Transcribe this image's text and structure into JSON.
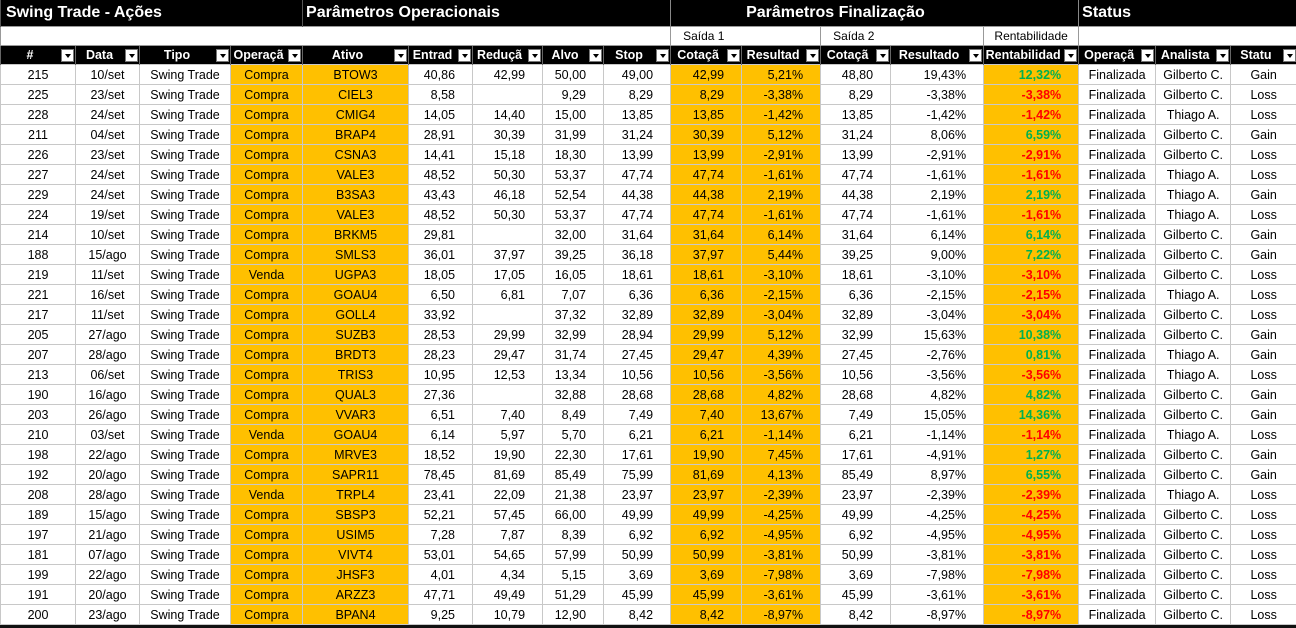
{
  "header": {
    "title": "Swing Trade - Ações",
    "groups": [
      "Parâmetros Operacionais",
      "Parâmetros Finalização",
      "Status"
    ],
    "subgroups": [
      "Saída 1",
      "Saída 2",
      "Rentabilidade"
    ]
  },
  "table": {
    "columns": [
      "#",
      "Data",
      "Tipo",
      "Operaçã",
      "Ativo",
      "Entrad",
      "Reduçã",
      "Alvo",
      "Stop",
      "Cotaçã",
      "Resultad",
      "Cotaçã",
      "Resultado",
      "Rentabilidad",
      "Operaçã",
      "Analista",
      "Statu"
    ],
    "rows": [
      [
        "215",
        "10/set",
        "Swing Trade",
        "Compra",
        "BTOW3",
        "40,86",
        "42,99",
        "50,00",
        "49,00",
        "42,99",
        "5,21%",
        "48,80",
        "19,43%",
        "12,32%",
        "Finalizada",
        "Gilberto C.",
        "Gain"
      ],
      [
        "225",
        "23/set",
        "Swing Trade",
        "Compra",
        "CIEL3",
        "8,58",
        null,
        "9,29",
        "8,29",
        "8,29",
        "-3,38%",
        "8,29",
        "-3,38%",
        "-3,38%",
        "Finalizada",
        "Gilberto C.",
        "Loss"
      ],
      [
        "228",
        "24/set",
        "Swing Trade",
        "Compra",
        "CMIG4",
        "14,05",
        "14,40",
        "15,00",
        "13,85",
        "13,85",
        "-1,42%",
        "13,85",
        "-1,42%",
        "-1,42%",
        "Finalizada",
        "Thiago A.",
        "Loss"
      ],
      [
        "211",
        "04/set",
        "Swing Trade",
        "Compra",
        "BRAP4",
        "28,91",
        "30,39",
        "31,99",
        "31,24",
        "30,39",
        "5,12%",
        "31,24",
        "8,06%",
        "6,59%",
        "Finalizada",
        "Gilberto C.",
        "Gain"
      ],
      [
        "226",
        "23/set",
        "Swing Trade",
        "Compra",
        "CSNA3",
        "14,41",
        "15,18",
        "18,30",
        "13,99",
        "13,99",
        "-2,91%",
        "13,99",
        "-2,91%",
        "-2,91%",
        "Finalizada",
        "Gilberto C.",
        "Loss"
      ],
      [
        "227",
        "24/set",
        "Swing Trade",
        "Compra",
        "VALE3",
        "48,52",
        "50,30",
        "53,37",
        "47,74",
        "47,74",
        "-1,61%",
        "47,74",
        "-1,61%",
        "-1,61%",
        "Finalizada",
        "Thiago A.",
        "Loss"
      ],
      [
        "229",
        "24/set",
        "Swing Trade",
        "Compra",
        "B3SA3",
        "43,43",
        "46,18",
        "52,54",
        "44,38",
        "44,38",
        "2,19%",
        "44,38",
        "2,19%",
        "2,19%",
        "Finalizada",
        "Thiago A.",
        "Gain"
      ],
      [
        "224",
        "19/set",
        "Swing Trade",
        "Compra",
        "VALE3",
        "48,52",
        "50,30",
        "53,37",
        "47,74",
        "47,74",
        "-1,61%",
        "47,74",
        "-1,61%",
        "-1,61%",
        "Finalizada",
        "Thiago A.",
        "Loss"
      ],
      [
        "214",
        "10/set",
        "Swing Trade",
        "Compra",
        "BRKM5",
        "29,81",
        null,
        "32,00",
        "31,64",
        "31,64",
        "6,14%",
        "31,64",
        "6,14%",
        "6,14%",
        "Finalizada",
        "Gilberto C.",
        "Gain"
      ],
      [
        "188",
        "15/ago",
        "Swing Trade",
        "Compra",
        "SMLS3",
        "36,01",
        "37,97",
        "39,25",
        "36,18",
        "37,97",
        "5,44%",
        "39,25",
        "9,00%",
        "7,22%",
        "Finalizada",
        "Gilberto C.",
        "Gain"
      ],
      [
        "219",
        "11/set",
        "Swing Trade",
        "Venda",
        "UGPA3",
        "18,05",
        "17,05",
        "16,05",
        "18,61",
        "18,61",
        "-3,10%",
        "18,61",
        "-3,10%",
        "-3,10%",
        "Finalizada",
        "Gilberto C.",
        "Loss"
      ],
      [
        "221",
        "16/set",
        "Swing Trade",
        "Compra",
        "GOAU4",
        "6,50",
        "6,81",
        "7,07",
        "6,36",
        "6,36",
        "-2,15%",
        "6,36",
        "-2,15%",
        "-2,15%",
        "Finalizada",
        "Thiago A.",
        "Loss"
      ],
      [
        "217",
        "11/set",
        "Swing Trade",
        "Compra",
        "GOLL4",
        "33,92",
        null,
        "37,32",
        "32,89",
        "32,89",
        "-3,04%",
        "32,89",
        "-3,04%",
        "-3,04%",
        "Finalizada",
        "Gilberto C.",
        "Loss"
      ],
      [
        "205",
        "27/ago",
        "Swing Trade",
        "Compra",
        "SUZB3",
        "28,53",
        "29,99",
        "32,99",
        "28,94",
        "29,99",
        "5,12%",
        "32,99",
        "15,63%",
        "10,38%",
        "Finalizada",
        "Gilberto C.",
        "Gain"
      ],
      [
        "207",
        "28/ago",
        "Swing Trade",
        "Compra",
        "BRDT3",
        "28,23",
        "29,47",
        "31,74",
        "27,45",
        "29,47",
        "4,39%",
        "27,45",
        "-2,76%",
        "0,81%",
        "Finalizada",
        "Thiago A.",
        "Gain"
      ],
      [
        "213",
        "06/set",
        "Swing Trade",
        "Compra",
        "TRIS3",
        "10,95",
        "12,53",
        "13,34",
        "10,56",
        "10,56",
        "-3,56%",
        "10,56",
        "-3,56%",
        "-3,56%",
        "Finalizada",
        "Thiago A.",
        "Loss"
      ],
      [
        "190",
        "16/ago",
        "Swing Trade",
        "Compra",
        "QUAL3",
        "27,36",
        null,
        "32,88",
        "28,68",
        "28,68",
        "4,82%",
        "28,68",
        "4,82%",
        "4,82%",
        "Finalizada",
        "Gilberto C.",
        "Gain"
      ],
      [
        "203",
        "26/ago",
        "Swing Trade",
        "Compra",
        "VVAR3",
        "6,51",
        "7,40",
        "8,49",
        "7,49",
        "7,40",
        "13,67%",
        "7,49",
        "15,05%",
        "14,36%",
        "Finalizada",
        "Gilberto C.",
        "Gain"
      ],
      [
        "210",
        "03/set",
        "Swing Trade",
        "Venda",
        "GOAU4",
        "6,14",
        "5,97",
        "5,70",
        "6,21",
        "6,21",
        "-1,14%",
        "6,21",
        "-1,14%",
        "-1,14%",
        "Finalizada",
        "Thiago A.",
        "Loss"
      ],
      [
        "198",
        "22/ago",
        "Swing Trade",
        "Compra",
        "MRVE3",
        "18,52",
        "19,90",
        "22,30",
        "17,61",
        "19,90",
        "7,45%",
        "17,61",
        "-4,91%",
        "1,27%",
        "Finalizada",
        "Gilberto C.",
        "Gain"
      ],
      [
        "192",
        "20/ago",
        "Swing Trade",
        "Compra",
        "SAPR11",
        "78,45",
        "81,69",
        "85,49",
        "75,99",
        "81,69",
        "4,13%",
        "85,49",
        "8,97%",
        "6,55%",
        "Finalizada",
        "Gilberto C.",
        "Gain"
      ],
      [
        "208",
        "28/ago",
        "Swing Trade",
        "Venda",
        "TRPL4",
        "23,41",
        "22,09",
        "21,38",
        "23,97",
        "23,97",
        "-2,39%",
        "23,97",
        "-2,39%",
        "-2,39%",
        "Finalizada",
        "Thiago A.",
        "Loss"
      ],
      [
        "189",
        "15/ago",
        "Swing Trade",
        "Compra",
        "SBSP3",
        "52,21",
        "57,45",
        "66,00",
        "49,99",
        "49,99",
        "-4,25%",
        "49,99",
        "-4,25%",
        "-4,25%",
        "Finalizada",
        "Gilberto C.",
        "Loss"
      ],
      [
        "197",
        "21/ago",
        "Swing Trade",
        "Compra",
        "USIM5",
        "7,28",
        "7,87",
        "8,39",
        "6,92",
        "6,92",
        "-4,95%",
        "6,92",
        "-4,95%",
        "-4,95%",
        "Finalizada",
        "Gilberto C.",
        "Loss"
      ],
      [
        "181",
        "07/ago",
        "Swing Trade",
        "Compra",
        "VIVT4",
        "53,01",
        "54,65",
        "57,99",
        "50,99",
        "50,99",
        "-3,81%",
        "50,99",
        "-3,81%",
        "-3,81%",
        "Finalizada",
        "Gilberto C.",
        "Loss"
      ],
      [
        "199",
        "22/ago",
        "Swing Trade",
        "Compra",
        "JHSF3",
        "4,01",
        "4,34",
        "5,15",
        "3,69",
        "3,69",
        "-7,98%",
        "3,69",
        "-7,98%",
        "-7,98%",
        "Finalizada",
        "Gilberto C.",
        "Loss"
      ],
      [
        "191",
        "20/ago",
        "Swing Trade",
        "Compra",
        "ARZZ3",
        "47,71",
        "49,49",
        "51,29",
        "45,99",
        "45,99",
        "-3,61%",
        "45,99",
        "-3,61%",
        "-3,61%",
        "Finalizada",
        "Gilberto C.",
        "Loss"
      ],
      [
        "200",
        "23/ago",
        "Swing Trade",
        "Compra",
        "BPAN4",
        "9,25",
        "10,79",
        "12,90",
        "8,42",
        "8,42",
        "-8,97%",
        "8,42",
        "-8,97%",
        "-8,97%",
        "Finalizada",
        "Gilberto C.",
        "Loss"
      ]
    ]
  }
}
